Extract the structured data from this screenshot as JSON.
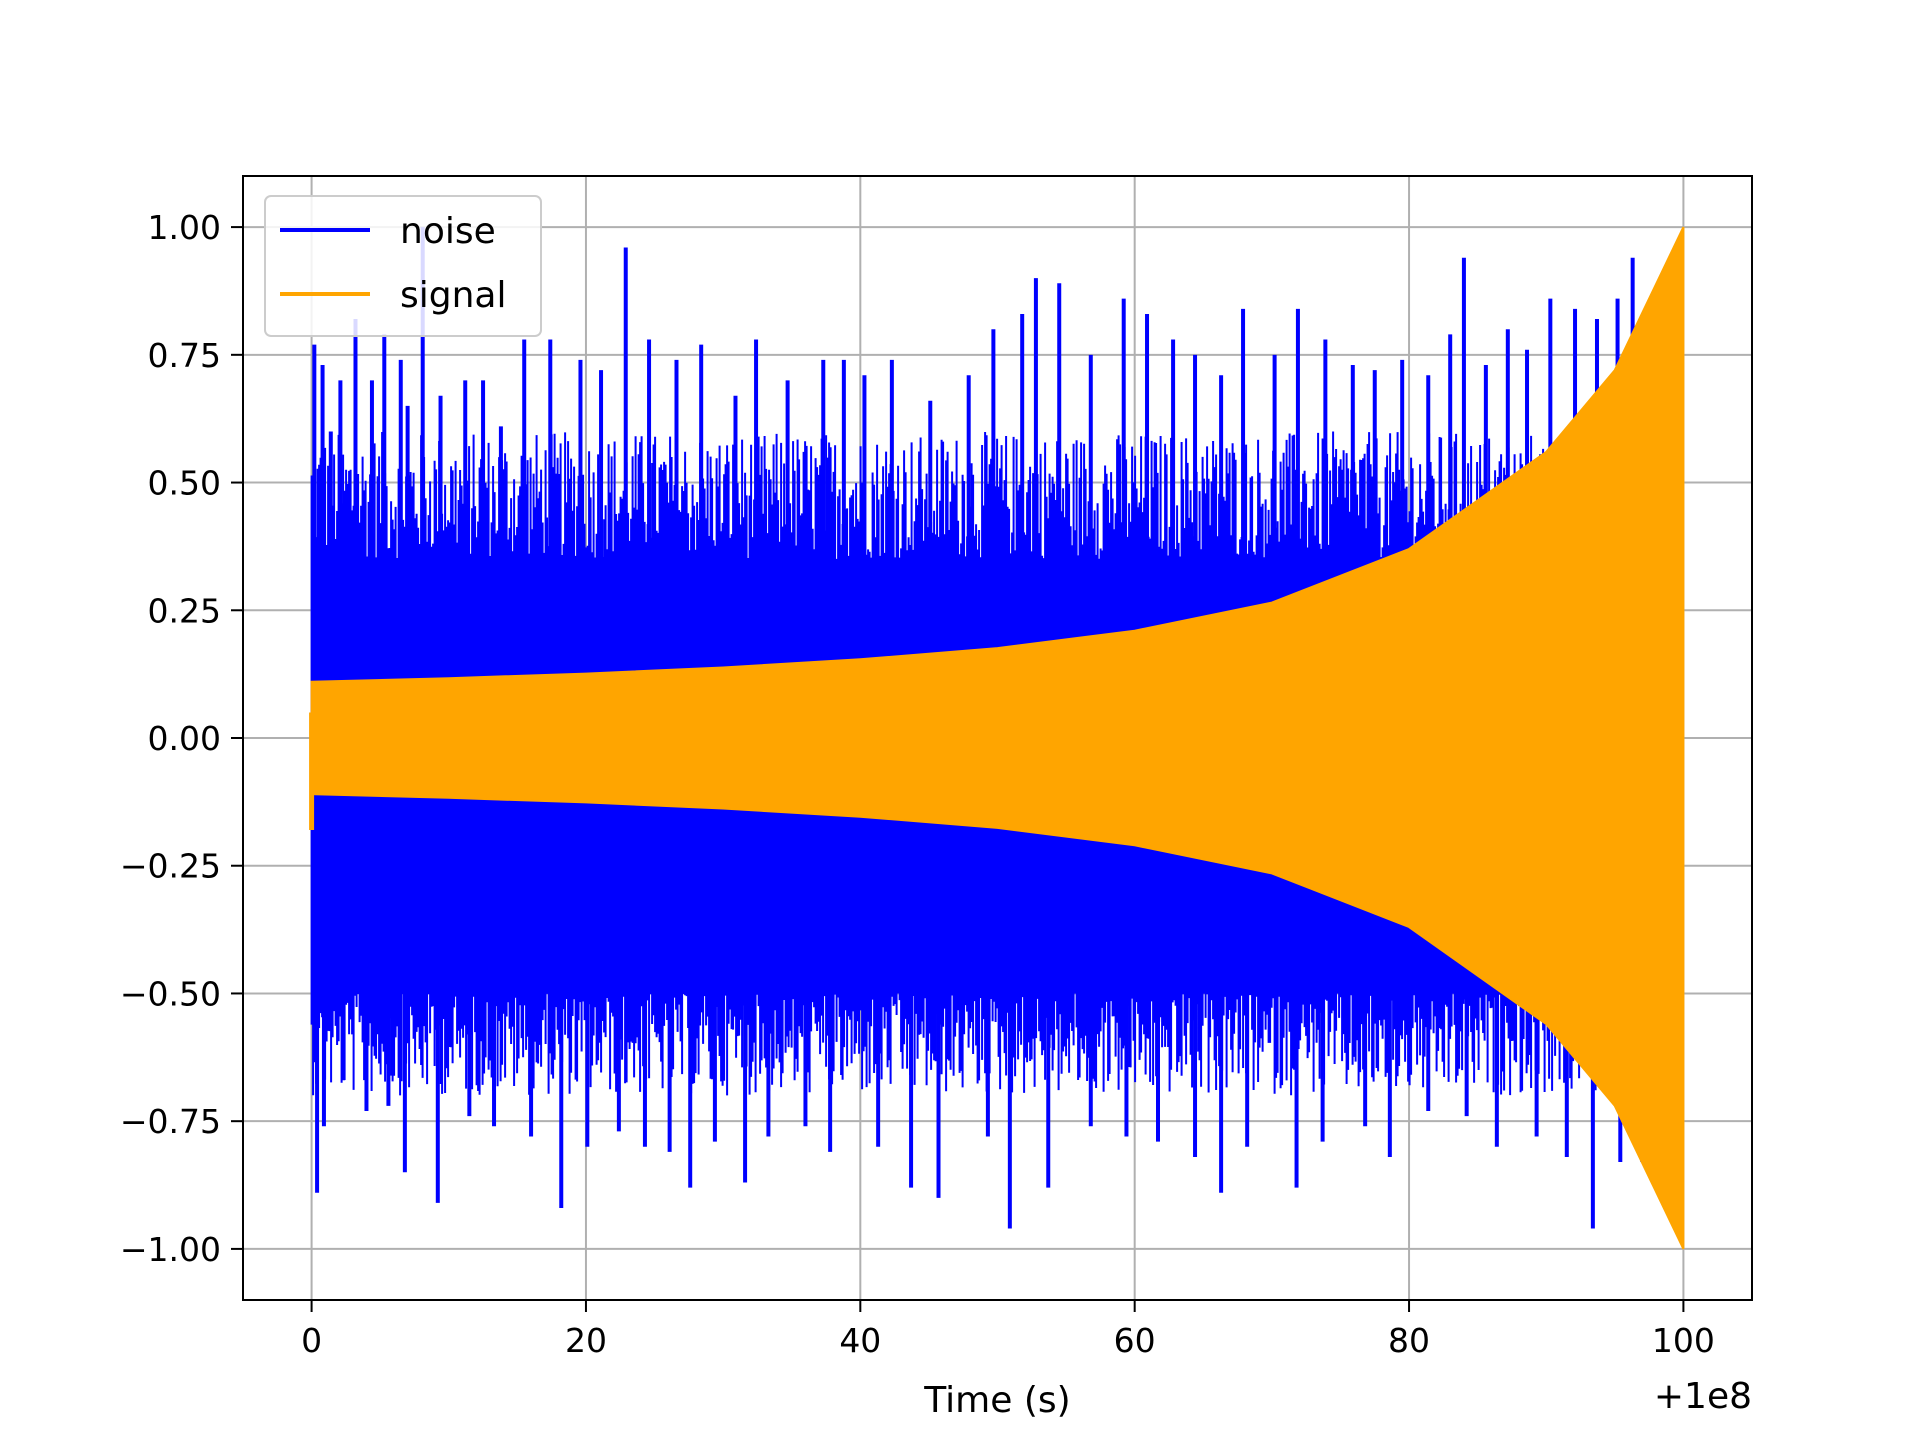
{
  "chart_data": {
    "type": "line",
    "xlabel": "Time (s)",
    "ylabel": "",
    "x_offset_label": "+1e8",
    "xlim": [
      -5,
      105
    ],
    "ylim": [
      -1.1,
      1.1
    ],
    "x_ticks": [
      0,
      20,
      40,
      60,
      80,
      100
    ],
    "x_tick_labels": [
      "0",
      "20",
      "40",
      "60",
      "80",
      "100"
    ],
    "y_ticks": [
      1.0,
      0.75,
      0.5,
      0.25,
      0.0,
      -0.25,
      -0.5,
      -0.75,
      -1.0
    ],
    "y_tick_labels": [
      "1.00",
      "0.75",
      "0.50",
      "0.25",
      "0.00",
      "−0.25",
      "−0.50",
      "−0.75",
      "−1.00"
    ],
    "grid": true,
    "legend_position": "top-left",
    "series": [
      {
        "name": "noise",
        "color": "#0000ff",
        "x_range": [
          0,
          100
        ],
        "description_values": {
          "approx_amplitude_range": [
            -0.95,
            1.0
          ]
        },
        "spikes_upper": [
          [
            0.2,
            0.77
          ],
          [
            0.8,
            0.73
          ],
          [
            1.4,
            0.6
          ],
          [
            2.1,
            0.7
          ],
          [
            3.2,
            0.82
          ],
          [
            4.4,
            0.7
          ],
          [
            5.3,
            0.79
          ],
          [
            6.5,
            0.74
          ],
          [
            7.0,
            0.65
          ],
          [
            8.1,
            1.0
          ],
          [
            9.4,
            0.67
          ],
          [
            11.2,
            0.7
          ],
          [
            12.5,
            0.7
          ],
          [
            13.8,
            0.61
          ],
          [
            15.5,
            0.78
          ],
          [
            17.4,
            0.78
          ],
          [
            19.6,
            0.74
          ],
          [
            21.1,
            0.72
          ],
          [
            22.9,
            0.96
          ],
          [
            24.6,
            0.78
          ],
          [
            26.6,
            0.74
          ],
          [
            28.4,
            0.77
          ],
          [
            30.9,
            0.67
          ],
          [
            32.4,
            0.78
          ],
          [
            34.7,
            0.7
          ],
          [
            37.3,
            0.74
          ],
          [
            38.8,
            0.74
          ],
          [
            40.3,
            0.71
          ],
          [
            42.3,
            0.74
          ],
          [
            45.1,
            0.66
          ],
          [
            47.9,
            0.71
          ],
          [
            49.7,
            0.8
          ],
          [
            51.8,
            0.83
          ],
          [
            52.8,
            0.9
          ],
          [
            54.5,
            0.89
          ],
          [
            56.8,
            0.75
          ],
          [
            59.2,
            0.86
          ],
          [
            60.9,
            0.83
          ],
          [
            62.8,
            0.78
          ],
          [
            64.4,
            0.75
          ],
          [
            66.3,
            0.71
          ],
          [
            67.9,
            0.84
          ],
          [
            70.2,
            0.75
          ],
          [
            71.9,
            0.84
          ],
          [
            73.9,
            0.78
          ],
          [
            75.9,
            0.73
          ],
          [
            77.5,
            0.72
          ],
          [
            79.5,
            0.74
          ],
          [
            81.4,
            0.71
          ],
          [
            83.0,
            0.79
          ],
          [
            84.0,
            0.94
          ],
          [
            85.6,
            0.73
          ],
          [
            87.2,
            0.8
          ],
          [
            88.6,
            0.76
          ],
          [
            90.3,
            0.86
          ],
          [
            92.1,
            0.84
          ],
          [
            93.7,
            0.82
          ],
          [
            95.2,
            0.86
          ],
          [
            96.3,
            0.94
          ]
        ],
        "spikes_lower": [
          [
            0.4,
            -0.89
          ],
          [
            0.9,
            -0.76
          ],
          [
            2.3,
            -0.67
          ],
          [
            4.0,
            -0.73
          ],
          [
            5.6,
            -0.72
          ],
          [
            6.8,
            -0.85
          ],
          [
            9.2,
            -0.91
          ],
          [
            11.5,
            -0.74
          ],
          [
            13.3,
            -0.76
          ],
          [
            16.0,
            -0.78
          ],
          [
            18.2,
            -0.92
          ],
          [
            20.1,
            -0.8
          ],
          [
            22.4,
            -0.77
          ],
          [
            24.3,
            -0.8
          ],
          [
            26.1,
            -0.81
          ],
          [
            27.6,
            -0.88
          ],
          [
            29.4,
            -0.79
          ],
          [
            31.6,
            -0.87
          ],
          [
            33.3,
            -0.78
          ],
          [
            36.0,
            -0.76
          ],
          [
            37.8,
            -0.81
          ],
          [
            41.3,
            -0.8
          ],
          [
            43.7,
            -0.88
          ],
          [
            45.7,
            -0.9
          ],
          [
            49.3,
            -0.78
          ],
          [
            50.9,
            -0.96
          ],
          [
            53.7,
            -0.88
          ],
          [
            56.8,
            -0.76
          ],
          [
            59.4,
            -0.78
          ],
          [
            61.7,
            -0.79
          ],
          [
            64.4,
            -0.82
          ],
          [
            66.3,
            -0.89
          ],
          [
            68.2,
            -0.8
          ],
          [
            71.8,
            -0.88
          ],
          [
            73.7,
            -0.79
          ],
          [
            76.8,
            -0.76
          ],
          [
            78.6,
            -0.82
          ],
          [
            81.4,
            -0.73
          ],
          [
            84.2,
            -0.74
          ],
          [
            86.4,
            -0.8
          ],
          [
            89.3,
            -0.78
          ],
          [
            91.5,
            -0.82
          ],
          [
            93.4,
            -0.96
          ],
          [
            95.4,
            -0.83
          ],
          [
            97.0,
            -0.83
          ]
        ]
      },
      {
        "name": "signal",
        "color": "#ffa500",
        "x_range": [
          0,
          100
        ],
        "envelope": [
          [
            0,
            0.11
          ],
          [
            10,
            0.117
          ],
          [
            20,
            0.126
          ],
          [
            30,
            0.138
          ],
          [
            40,
            0.154
          ],
          [
            50,
            0.176
          ],
          [
            60,
            0.21
          ],
          [
            70,
            0.265
          ],
          [
            80,
            0.37
          ],
          [
            90,
            0.56
          ],
          [
            95,
            0.72
          ],
          [
            100,
            1.0
          ]
        ],
        "start_spike": -0.18
      }
    ]
  }
}
